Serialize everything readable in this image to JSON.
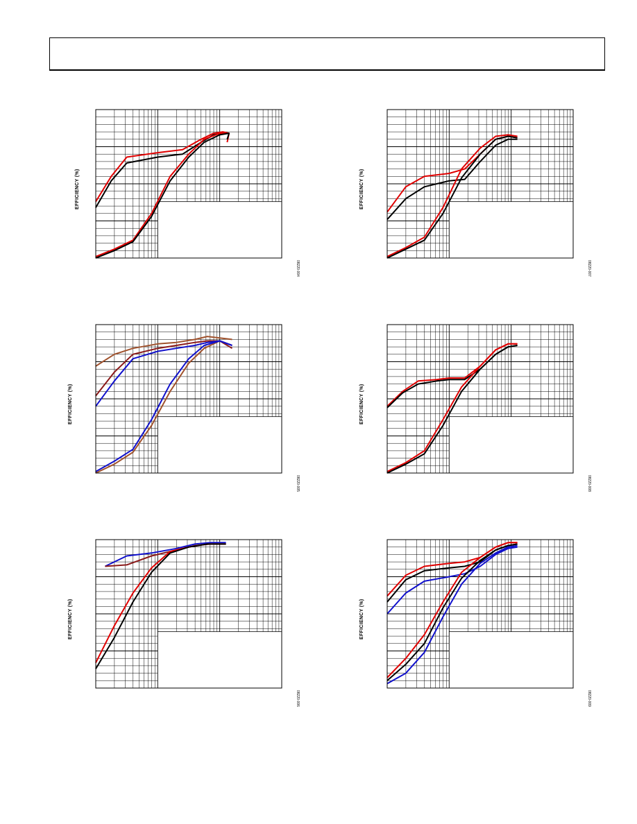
{
  "header": {},
  "chart_data": [
    {
      "type": "line",
      "panel_id": "p1",
      "ylabel": "EFFICIENCY (%)",
      "figure_id": "08220-004",
      "x_scale": "log",
      "x_decades": 3,
      "ylim": [
        0,
        100
      ],
      "grid": true,
      "series": [
        {
          "color": "#e00000",
          "points": [
            [
              0,
              38
            ],
            [
              0.25,
              55
            ],
            [
              0.5,
              68
            ],
            [
              1,
              71
            ],
            [
              1.4,
              73
            ],
            [
              1.7,
              80
            ],
            [
              1.9,
              84
            ],
            [
              2.05,
              85
            ],
            [
              2.15,
              84
            ],
            [
              2.12,
              78
            ]
          ]
        },
        {
          "color": "#000000",
          "points": [
            [
              0,
              34
            ],
            [
              0.25,
              52
            ],
            [
              0.5,
              64
            ],
            [
              1,
              68
            ],
            [
              1.4,
              70
            ],
            [
              1.7,
              78
            ],
            [
              1.9,
              83
            ],
            [
              2.05,
              84
            ],
            [
              2.15,
              84
            ],
            [
              2.12,
              80
            ]
          ]
        },
        {
          "color": "#e00000",
          "points": [
            [
              0,
              1
            ],
            [
              0.3,
              6
            ],
            [
              0.6,
              12
            ],
            [
              0.9,
              30
            ],
            [
              1.2,
              55
            ],
            [
              1.5,
              70
            ],
            [
              1.75,
              80
            ],
            [
              2.0,
              84
            ],
            [
              2.15,
              84
            ]
          ]
        },
        {
          "color": "#000000",
          "points": [
            [
              0,
              0
            ],
            [
              0.3,
              5
            ],
            [
              0.6,
              11
            ],
            [
              0.9,
              28
            ],
            [
              1.2,
              52
            ],
            [
              1.5,
              68
            ],
            [
              1.75,
              78
            ],
            [
              2.0,
              83
            ],
            [
              2.15,
              84
            ]
          ]
        }
      ]
    },
    {
      "type": "line",
      "panel_id": "p2",
      "ylabel": "EFFICIENCY (%)",
      "figure_id": "08220-007",
      "x_scale": "log",
      "x_decades": 3,
      "ylim": [
        0,
        100
      ],
      "grid": true,
      "series": [
        {
          "color": "#e00000",
          "points": [
            [
              0,
              31
            ],
            [
              0.3,
              48
            ],
            [
              0.6,
              55
            ],
            [
              1.0,
              57
            ],
            [
              1.25,
              60
            ],
            [
              1.5,
              70
            ],
            [
              1.75,
              80
            ],
            [
              1.95,
              82
            ],
            [
              2.1,
              81
            ]
          ]
        },
        {
          "color": "#000000",
          "points": [
            [
              0,
              26
            ],
            [
              0.3,
              40
            ],
            [
              0.6,
              48
            ],
            [
              1.0,
              52
            ],
            [
              1.25,
              53
            ],
            [
              1.5,
              65
            ],
            [
              1.75,
              76
            ],
            [
              1.95,
              80
            ],
            [
              2.1,
              80
            ]
          ]
        },
        {
          "color": "#e00000",
          "points": [
            [
              0,
              1
            ],
            [
              0.3,
              7
            ],
            [
              0.6,
              14
            ],
            [
              0.9,
              34
            ],
            [
              1.2,
              60
            ],
            [
              1.5,
              74
            ],
            [
              1.75,
              82
            ],
            [
              1.95,
              83
            ],
            [
              2.1,
              82
            ]
          ]
        },
        {
          "color": "#000000",
          "points": [
            [
              0,
              0
            ],
            [
              0.3,
              6
            ],
            [
              0.6,
              12
            ],
            [
              0.9,
              30
            ],
            [
              1.2,
              54
            ],
            [
              1.5,
              70
            ],
            [
              1.75,
              80
            ],
            [
              1.95,
              82
            ],
            [
              2.1,
              81
            ]
          ]
        }
      ]
    },
    {
      "type": "line",
      "panel_id": "p3",
      "ylabel": "EFFICIENCY (%)",
      "figure_id": "08220-005",
      "x_scale": "log",
      "x_decades": 3,
      "ylim": [
        0,
        100
      ],
      "grid": true,
      "series": [
        {
          "color": "#a0522d",
          "points": [
            [
              0,
              72
            ],
            [
              0.3,
              80
            ],
            [
              0.6,
              84
            ],
            [
              1.0,
              87
            ],
            [
              1.3,
              88
            ],
            [
              1.6,
              90
            ],
            [
              1.8,
              92
            ],
            [
              2.0,
              91
            ],
            [
              2.2,
              90
            ]
          ]
        },
        {
          "color": "#8b1a1a",
          "points": [
            [
              0,
              52
            ],
            [
              0.3,
              68
            ],
            [
              0.6,
              80
            ],
            [
              1.0,
              84
            ],
            [
              1.3,
              86
            ],
            [
              1.6,
              88
            ],
            [
              1.8,
              89
            ],
            [
              2.0,
              89
            ],
            [
              2.2,
              84
            ]
          ]
        },
        {
          "color": "#1010cc",
          "points": [
            [
              0,
              45
            ],
            [
              0.3,
              62
            ],
            [
              0.6,
              77
            ],
            [
              1.0,
              82
            ],
            [
              1.3,
              84
            ],
            [
              1.6,
              86
            ],
            [
              1.8,
              88
            ],
            [
              2.0,
              89
            ],
            [
              2.2,
              86
            ]
          ]
        },
        {
          "color": "#a0522d",
          "points": [
            [
              0,
              0
            ],
            [
              0.3,
              6
            ],
            [
              0.6,
              14
            ],
            [
              0.9,
              32
            ],
            [
              1.2,
              55
            ],
            [
              1.5,
              74
            ],
            [
              1.75,
              84
            ],
            [
              2.0,
              89
            ],
            [
              2.2,
              86
            ]
          ]
        },
        {
          "color": "#1010cc",
          "points": [
            [
              0,
              1
            ],
            [
              0.3,
              8
            ],
            [
              0.6,
              16
            ],
            [
              0.9,
              36
            ],
            [
              1.2,
              60
            ],
            [
              1.5,
              77
            ],
            [
              1.75,
              86
            ],
            [
              2.0,
              89
            ],
            [
              2.2,
              86
            ]
          ]
        }
      ]
    },
    {
      "type": "line",
      "panel_id": "p4",
      "ylabel": "EFFICIENCY (%)",
      "figure_id": "08220-008",
      "x_scale": "log",
      "x_decades": 3,
      "ylim": [
        0,
        100
      ],
      "grid": true,
      "series": [
        {
          "color": "#e00000",
          "points": [
            [
              0,
              45
            ],
            [
              0.25,
              55
            ],
            [
              0.5,
              62
            ],
            [
              0.8,
              63
            ],
            [
              1.0,
              64
            ],
            [
              1.25,
              64
            ],
            [
              1.5,
              72
            ],
            [
              1.75,
              83
            ],
            [
              1.95,
              87
            ],
            [
              2.1,
              87
            ]
          ]
        },
        {
          "color": "#000000",
          "points": [
            [
              0,
              44
            ],
            [
              0.25,
              54
            ],
            [
              0.5,
              60
            ],
            [
              0.8,
              62
            ],
            [
              1.0,
              63
            ],
            [
              1.25,
              63
            ],
            [
              1.5,
              70
            ],
            [
              1.75,
              80
            ],
            [
              1.95,
              85
            ],
            [
              2.1,
              86
            ]
          ]
        },
        {
          "color": "#e00000",
          "points": [
            [
              0,
              1
            ],
            [
              0.3,
              7
            ],
            [
              0.6,
              15
            ],
            [
              0.9,
              36
            ],
            [
              1.2,
              58
            ],
            [
              1.5,
              72
            ],
            [
              1.75,
              83
            ],
            [
              1.95,
              87
            ],
            [
              2.1,
              87
            ]
          ]
        },
        {
          "color": "#000000",
          "points": [
            [
              0,
              0
            ],
            [
              0.3,
              6
            ],
            [
              0.6,
              13
            ],
            [
              0.9,
              32
            ],
            [
              1.2,
              55
            ],
            [
              1.5,
              70
            ],
            [
              1.75,
              80
            ],
            [
              1.95,
              85
            ],
            [
              2.1,
              86
            ]
          ]
        }
      ]
    },
    {
      "type": "line",
      "panel_id": "p5",
      "ylabel": "EFFICIENCY (%)",
      "figure_id": "08220-006",
      "x_scale": "log",
      "x_decades": 3,
      "ylim": [
        0,
        100
      ],
      "grid": true,
      "series": [
        {
          "color": "#1010cc",
          "points": [
            [
              0.15,
              82
            ],
            [
              0.5,
              89
            ],
            [
              0.9,
              91
            ],
            [
              1.3,
              94
            ],
            [
              1.6,
              97
            ],
            [
              1.85,
              98
            ],
            [
              2.1,
              98
            ]
          ]
        },
        {
          "color": "#8b1a1a",
          "points": [
            [
              0.15,
              82
            ],
            [
              0.5,
              83
            ],
            [
              0.9,
              89
            ],
            [
              1.3,
              93
            ],
            [
              1.6,
              96
            ],
            [
              1.85,
              97
            ],
            [
              2.1,
              97
            ]
          ]
        },
        {
          "color": "#e00000",
          "points": [
            [
              0,
              17
            ],
            [
              0.3,
              42
            ],
            [
              0.6,
              64
            ],
            [
              0.9,
              81
            ],
            [
              1.2,
              92
            ],
            [
              1.5,
              95
            ],
            [
              1.8,
              97
            ],
            [
              2.1,
              97
            ]
          ]
        },
        {
          "color": "#000000",
          "points": [
            [
              0,
              13
            ],
            [
              0.3,
              34
            ],
            [
              0.6,
              58
            ],
            [
              0.9,
              78
            ],
            [
              1.2,
              91
            ],
            [
              1.5,
              95
            ],
            [
              1.8,
              97
            ],
            [
              2.1,
              97
            ]
          ]
        }
      ]
    },
    {
      "type": "line",
      "panel_id": "p6",
      "ylabel": "EFFICIENCY (%)",
      "figure_id": "08220-009",
      "x_scale": "log",
      "x_decades": 3,
      "ylim": [
        0,
        100
      ],
      "grid": true,
      "series": [
        {
          "color": "#e00000",
          "points": [
            [
              0,
              62
            ],
            [
              0.3,
              76
            ],
            [
              0.6,
              82
            ],
            [
              1.0,
              84
            ],
            [
              1.25,
              85
            ],
            [
              1.5,
              88
            ],
            [
              1.75,
              95
            ],
            [
              1.95,
              98
            ],
            [
              2.1,
              98
            ]
          ]
        },
        {
          "color": "#000000",
          "points": [
            [
              0,
              58
            ],
            [
              0.3,
              73
            ],
            [
              0.6,
              79
            ],
            [
              1.0,
              81
            ],
            [
              1.25,
              82
            ],
            [
              1.5,
              85
            ],
            [
              1.75,
              93
            ],
            [
              1.95,
              96
            ],
            [
              2.1,
              97
            ]
          ]
        },
        {
          "color": "#1010cc",
          "points": [
            [
              0,
              50
            ],
            [
              0.3,
              64
            ],
            [
              0.6,
              72
            ],
            [
              1.0,
              75
            ],
            [
              1.25,
              77
            ],
            [
              1.5,
              82
            ],
            [
              1.75,
              90
            ],
            [
              1.95,
              94
            ],
            [
              2.1,
              95
            ]
          ]
        },
        {
          "color": "#e00000",
          "points": [
            [
              0,
              7
            ],
            [
              0.3,
              20
            ],
            [
              0.6,
              36
            ],
            [
              0.9,
              58
            ],
            [
              1.2,
              78
            ],
            [
              1.5,
              88
            ],
            [
              1.75,
              95
            ],
            [
              1.95,
              98
            ],
            [
              2.1,
              98
            ]
          ]
        },
        {
          "color": "#000000",
          "points": [
            [
              0,
              5
            ],
            [
              0.3,
              16
            ],
            [
              0.6,
              30
            ],
            [
              0.9,
              54
            ],
            [
              1.2,
              74
            ],
            [
              1.5,
              86
            ],
            [
              1.75,
              93
            ],
            [
              1.95,
              96
            ],
            [
              2.1,
              97
            ]
          ]
        },
        {
          "color": "#1010cc",
          "points": [
            [
              0,
              3
            ],
            [
              0.3,
              10
            ],
            [
              0.6,
              24
            ],
            [
              0.9,
              48
            ],
            [
              1.2,
              70
            ],
            [
              1.5,
              84
            ],
            [
              1.75,
              91
            ],
            [
              1.95,
              95
            ],
            [
              2.1,
              96
            ]
          ]
        }
      ]
    }
  ]
}
